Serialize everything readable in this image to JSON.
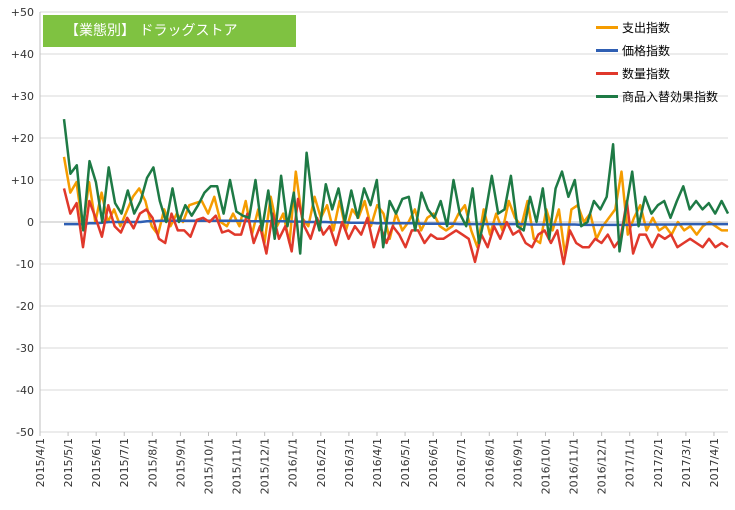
{
  "badge_label": "【業態別】 ドラッグストア",
  "colors": {
    "spending": "#f59c00",
    "price": "#2f5fb3",
    "quantity": "#e0382b",
    "substitution": "#1e7a45",
    "grid": "#d9d9d9",
    "badge": "#7fc241"
  },
  "chart_data": {
    "type": "line",
    "y_ticks": [
      "+50",
      "+40",
      "+30",
      "+20",
      "+10",
      "0",
      "-10",
      "-20",
      "-30",
      "-40",
      "-50"
    ],
    "ylim": [
      -50,
      50
    ],
    "x_labels": [
      "2015/4/1",
      "2015/5/1",
      "2015/6/1",
      "2015/7/1",
      "2015/8/1",
      "2015/9/1",
      "2015/10/1",
      "2015/11/1",
      "2015/12/1",
      "2016/1/1",
      "2016/2/1",
      "2016/3/1",
      "2016/4/1",
      "2016/5/1",
      "2016/6/1",
      "2016/7/1",
      "2016/8/1",
      "2016/9/1",
      "2016/10/1",
      "2016/11/1",
      "2016/12/1",
      "2017/1/1",
      "2017/2/1",
      "2017/3/1",
      "2017/4/1"
    ],
    "grid": true,
    "legend_position": "top-right",
    "series": [
      {
        "name": "支出指数",
        "key": "spending",
        "values": [
          15.5,
          7,
          9.5,
          -1.5,
          9.5,
          0,
          7,
          0,
          3,
          -1,
          2.5,
          6,
          8,
          5,
          -1,
          -3,
          3,
          -1,
          2,
          0,
          4,
          4.5,
          5,
          2,
          6,
          0,
          -1,
          2,
          -1,
          5,
          -3,
          3,
          -5,
          6,
          -1,
          2,
          -5,
          12,
          1,
          -1,
          6,
          1,
          4,
          -2,
          5,
          -2,
          3,
          1,
          5,
          -1,
          4,
          2,
          -4,
          2,
          -2,
          0,
          3,
          -2,
          1,
          2,
          -1,
          -2,
          -1,
          2,
          4,
          -2,
          -6,
          3,
          -3,
          2,
          -2,
          5,
          1,
          -1,
          5,
          -4,
          -5,
          3,
          -2,
          3,
          -8,
          3,
          4,
          0,
          2,
          -4,
          -1,
          1,
          3,
          12,
          -3,
          1,
          4,
          -2,
          1,
          -2,
          -1,
          -3,
          0,
          -2,
          -1,
          -3,
          -1,
          0,
          -1,
          -2,
          -2
        ],
        "color_key": "spending"
      },
      {
        "name": "価格指数",
        "key": "price",
        "values": [
          -0.5,
          -0.5,
          -0.5,
          -0.5,
          -0.3,
          -0.3,
          -0.2,
          0,
          0,
          0,
          0,
          0,
          0,
          0.2,
          0.2,
          0.3,
          0.3,
          0.3,
          0.3,
          0.3,
          0.3,
          0.3,
          0.3,
          0.3,
          0.3,
          0.3,
          0.3,
          0.3,
          0.3,
          0.2,
          0.2,
          0.2,
          0.2,
          0.2,
          0.2,
          0.2,
          0.1,
          0.1,
          0,
          0,
          0,
          0,
          -0.1,
          -0.1,
          -0.1,
          -0.2,
          -0.2,
          -0.2,
          -0.2,
          -0.3,
          -0.3,
          -0.3,
          -0.3,
          -0.3,
          -0.3,
          -0.3,
          -0.4,
          -0.4,
          -0.4,
          -0.4,
          -0.4,
          -0.4,
          -0.5,
          -0.5,
          -0.5,
          -0.5,
          -0.5,
          -0.5,
          -0.5,
          -0.5,
          -0.5,
          -0.5,
          -0.5,
          -0.6,
          -0.6,
          -0.6,
          -0.6,
          -0.6,
          -0.6,
          -0.6,
          -0.6,
          -0.7,
          -0.7,
          -0.7,
          -0.7,
          -0.7,
          -0.7,
          -0.7,
          -0.7,
          -0.7,
          -0.6,
          -0.6,
          -0.6,
          -0.6,
          -0.6,
          -0.6,
          -0.6,
          -0.5,
          -0.5,
          -0.5,
          -0.5,
          -0.5,
          -0.5,
          -0.5,
          -0.5
        ],
        "color_key": "price"
      },
      {
        "name": "数量指数",
        "key": "quantity",
        "values": [
          8,
          2,
          4.5,
          -6,
          5,
          1,
          -3.5,
          4,
          -1,
          -2.5,
          1,
          -1.5,
          2,
          3,
          1,
          -4,
          -5,
          2,
          -2,
          -2,
          -3.5,
          0.5,
          1,
          0,
          1.5,
          -2.5,
          -2,
          -3,
          -3,
          2,
          -5,
          -1,
          -7.5,
          2,
          -4,
          -1,
          -7,
          5.5,
          -1,
          -4,
          1,
          -3,
          -1,
          -5.5,
          0,
          -4,
          -1,
          -3,
          1,
          -6,
          -1,
          -5,
          -1,
          -3,
          -6,
          -2,
          -2,
          -5,
          -3,
          -4,
          -4,
          -3,
          -2,
          -3,
          -4,
          -9.5,
          -3,
          -6,
          -1,
          -4,
          0,
          -3,
          -2,
          -5,
          -6,
          -3,
          -2,
          -5,
          -2,
          -10,
          -2,
          -5,
          -6,
          -6,
          -4,
          -5,
          -3,
          -6,
          -4,
          5,
          -7.5,
          -3,
          -3,
          -6,
          -3,
          -4,
          -3,
          -6,
          -5,
          -4,
          -5,
          -6,
          -4,
          -6,
          -5,
          -6
        ],
        "color_key": "quantity"
      },
      {
        "name": "商品入替効果指数",
        "key": "substitution",
        "values": [
          24.5,
          11.5,
          13.5,
          -2,
          14.5,
          9.5,
          0,
          13,
          4.5,
          2,
          7.5,
          2,
          5,
          10.5,
          13,
          5,
          0,
          8,
          0,
          4,
          1.5,
          4,
          7,
          8.5,
          8.5,
          2,
          10,
          2.5,
          1.5,
          1,
          10,
          -2,
          7.5,
          -4,
          11,
          -1,
          7,
          -7.5,
          16.5,
          4,
          -2,
          9,
          3,
          8,
          0,
          7.5,
          1,
          8,
          4,
          10,
          -6,
          5,
          2,
          5.5,
          6,
          -2,
          7,
          3,
          1,
          5,
          -1,
          10,
          2,
          -1,
          8,
          -5,
          2,
          11,
          2,
          3,
          11,
          -1,
          -2,
          6,
          0,
          8,
          -4,
          8,
          12,
          6,
          10,
          -1,
          0,
          5,
          3,
          6,
          18.5,
          -7,
          3,
          12,
          -1,
          6,
          2,
          4,
          5,
          1,
          5,
          8.5,
          3,
          5,
          3,
          4.5,
          2,
          5,
          2
        ],
        "color_key": "substitution"
      }
    ]
  }
}
